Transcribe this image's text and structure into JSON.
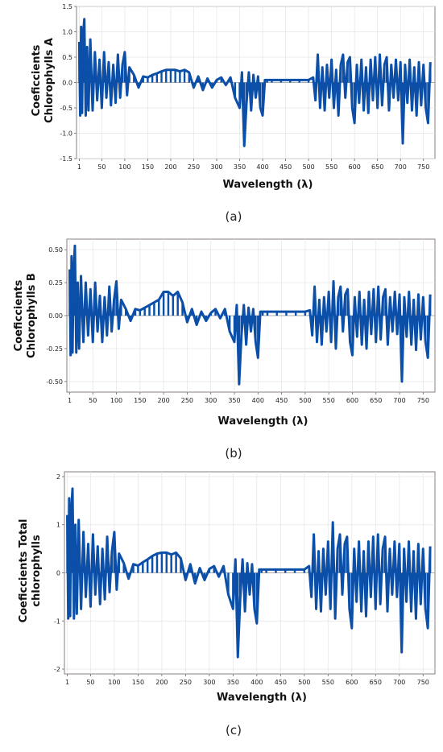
{
  "chart_data": [
    {
      "type": "bar",
      "panel_label": "(a)",
      "xlabel": "Wavelength (λ)",
      "ylabel_lines": [
        "Coeficcients",
        "Chlorophylls  A"
      ],
      "ylim": [
        -1.5,
        1.5
      ],
      "y_ticks": [
        -1.5,
        -1.0,
        -0.5,
        0.0,
        0.5,
        1.0,
        1.5
      ],
      "y_tick_labels": [
        "-1.5",
        "-1.0",
        "-0.5",
        "0.0",
        "0.5",
        "1.0",
        "1.5"
      ],
      "xlim": [
        -5,
        775
      ],
      "x_ticks": [
        1,
        50,
        100,
        150,
        200,
        250,
        300,
        350,
        400,
        450,
        500,
        550,
        600,
        650,
        700,
        750
      ],
      "x_tick_labels": [
        "1",
        "50",
        "100",
        "150",
        "200",
        "250",
        "300",
        "350",
        "400",
        "450",
        "500",
        "550",
        "600",
        "650",
        "700",
        "750"
      ],
      "grid": true,
      "color": "#0b4fa8",
      "series": [
        {
          "x": [
            1,
            3,
            5,
            7,
            9,
            12,
            15,
            18,
            21,
            25,
            30,
            35,
            40,
            45,
            50,
            55,
            60,
            65,
            70,
            75,
            80,
            85,
            90,
            95,
            100,
            105,
            110,
            120,
            130,
            140,
            150,
            160,
            170,
            180,
            190,
            200,
            210,
            220,
            230,
            240,
            250,
            260,
            270,
            280,
            290,
            300,
            310,
            320,
            330,
            340,
            350,
            355,
            360,
            365,
            370,
            375,
            380,
            385,
            390,
            395,
            400,
            405,
            410,
            420,
            440,
            460,
            480,
            500,
            510,
            515,
            520,
            525,
            530,
            535,
            540,
            545,
            550,
            555,
            560,
            565,
            570,
            575,
            580,
            585,
            590,
            595,
            600,
            605,
            610,
            615,
            620,
            625,
            630,
            635,
            640,
            645,
            650,
            655,
            660,
            665,
            670,
            675,
            680,
            685,
            690,
            695,
            700,
            705,
            710,
            715,
            720,
            725,
            730,
            735,
            740,
            745,
            750,
            755,
            760,
            765
          ],
          "values": [
            0.8,
            -0.65,
            1.1,
            -0.6,
            0.9,
            1.25,
            -0.65,
            0.7,
            -0.55,
            0.85,
            -0.55,
            0.6,
            -0.35,
            0.45,
            -0.5,
            0.6,
            -0.3,
            0.4,
            -0.45,
            0.35,
            -0.4,
            0.55,
            -0.3,
            0.35,
            0.6,
            -0.25,
            0.3,
            0.15,
            -0.1,
            0.12,
            0.1,
            0.15,
            0.18,
            0.22,
            0.25,
            0.25,
            0.25,
            0.22,
            0.25,
            0.2,
            -0.1,
            0.12,
            -0.15,
            0.08,
            -0.1,
            0.05,
            0.1,
            -0.05,
            0.1,
            -0.3,
            -0.5,
            0.2,
            -1.25,
            -0.4,
            0.2,
            -0.55,
            0.15,
            -0.3,
            0.12,
            -0.5,
            -0.65,
            0.05,
            0.05,
            0.05,
            0.05,
            0.05,
            0.05,
            0.05,
            0.1,
            -0.35,
            0.55,
            -0.5,
            0.3,
            -0.55,
            0.35,
            -0.3,
            0.45,
            -0.5,
            0.25,
            -0.65,
            0.35,
            0.55,
            -0.3,
            0.4,
            0.5,
            -0.5,
            -0.8,
            0.35,
            -0.4,
            0.45,
            -0.55,
            0.3,
            -0.6,
            0.45,
            -0.35,
            0.5,
            -0.5,
            0.55,
            -0.45,
            0.35,
            0.5,
            -0.55,
            0.35,
            -0.3,
            0.45,
            -0.35,
            0.4,
            -1.2,
            0.35,
            -0.4,
            0.45,
            -0.55,
            0.3,
            -0.65,
            0.4,
            -0.45,
            0.35,
            -0.5,
            -0.8,
            0.4
          ]
        }
      ]
    },
    {
      "type": "bar",
      "panel_label": "(b)",
      "xlabel": "Wavelength (λ)",
      "ylabel_lines": [
        "Coeficcients",
        "Chlorophylls  B"
      ],
      "ylim": [
        -0.58,
        0.58
      ],
      "y_ticks": [
        -0.5,
        -0.25,
        0.0,
        0.25,
        0.5
      ],
      "y_tick_labels": [
        "-0.50",
        "-0.25",
        "0.00",
        "0.25",
        "0.50"
      ],
      "xlim": [
        -5,
        775
      ],
      "x_ticks": [
        1,
        50,
        100,
        150,
        200,
        250,
        300,
        350,
        400,
        450,
        500,
        550,
        600,
        650,
        700,
        750
      ],
      "x_tick_labels": [
        "1",
        "50",
        "100",
        "150",
        "200",
        "250",
        "300",
        "350",
        "400",
        "450",
        "500",
        "550",
        "600",
        "650",
        "700",
        "750"
      ],
      "grid": true,
      "color": "#0b4fa8",
      "series": [
        {
          "x": [
            1,
            3,
            5,
            7,
            9,
            12,
            15,
            18,
            21,
            25,
            30,
            35,
            40,
            45,
            50,
            55,
            60,
            65,
            70,
            75,
            80,
            85,
            90,
            95,
            100,
            105,
            110,
            120,
            130,
            140,
            150,
            160,
            170,
            180,
            190,
            200,
            210,
            220,
            230,
            240,
            250,
            260,
            270,
            280,
            290,
            300,
            310,
            320,
            330,
            340,
            350,
            355,
            360,
            365,
            370,
            375,
            380,
            385,
            390,
            395,
            400,
            405,
            410,
            420,
            440,
            460,
            480,
            500,
            510,
            515,
            520,
            525,
            530,
            535,
            540,
            545,
            550,
            555,
            560,
            565,
            570,
            575,
            580,
            585,
            590,
            595,
            600,
            605,
            610,
            615,
            620,
            625,
            630,
            635,
            640,
            645,
            650,
            655,
            660,
            665,
            670,
            675,
            680,
            685,
            690,
            695,
            700,
            705,
            710,
            715,
            720,
            725,
            730,
            735,
            740,
            745,
            750,
            755,
            760,
            765
          ],
          "values": [
            0.35,
            -0.3,
            0.45,
            -0.28,
            0.3,
            0.53,
            -0.28,
            0.25,
            -0.25,
            0.3,
            -0.2,
            0.25,
            -0.15,
            0.2,
            -0.2,
            0.25,
            -0.12,
            0.15,
            -0.2,
            0.14,
            -0.15,
            0.22,
            -0.12,
            0.12,
            0.26,
            -0.1,
            0.12,
            0.05,
            -0.04,
            0.05,
            0.04,
            0.06,
            0.08,
            0.1,
            0.12,
            0.18,
            0.18,
            0.15,
            0.18,
            0.1,
            -0.05,
            0.05,
            -0.07,
            0.03,
            -0.04,
            0.02,
            0.05,
            -0.02,
            0.05,
            -0.12,
            -0.2,
            0.08,
            -0.52,
            -0.15,
            0.08,
            -0.22,
            0.06,
            -0.12,
            0.05,
            -0.2,
            -0.32,
            0.03,
            0.03,
            0.03,
            0.03,
            0.03,
            0.03,
            0.03,
            0.04,
            -0.15,
            0.22,
            -0.2,
            0.12,
            -0.22,
            0.14,
            -0.12,
            0.18,
            -0.2,
            0.26,
            -0.25,
            0.14,
            0.22,
            -0.12,
            0.16,
            0.2,
            -0.2,
            -0.3,
            0.14,
            -0.16,
            0.18,
            -0.22,
            0.12,
            -0.25,
            0.18,
            -0.14,
            0.2,
            -0.2,
            0.22,
            -0.18,
            0.14,
            0.2,
            -0.22,
            0.14,
            -0.12,
            0.18,
            -0.14,
            0.16,
            -0.5,
            0.14,
            -0.16,
            0.18,
            -0.22,
            0.12,
            -0.26,
            0.16,
            -0.18,
            0.14,
            -0.2,
            -0.32,
            0.16
          ]
        }
      ]
    },
    {
      "type": "bar",
      "panel_label": "(c)",
      "xlabel": "Wavelength (λ)",
      "ylabel_lines": [
        "Coeficcients Total",
        "chlorophylls"
      ],
      "ylim": [
        -2.1,
        2.1
      ],
      "y_ticks": [
        -2,
        -1,
        0,
        1,
        2
      ],
      "y_tick_labels": [
        "-2",
        "-1",
        "0",
        "1",
        "2"
      ],
      "xlim": [
        -5,
        775
      ],
      "x_ticks": [
        1,
        50,
        100,
        150,
        200,
        250,
        300,
        350,
        400,
        450,
        500,
        550,
        600,
        650,
        700,
        750
      ],
      "x_tick_labels": [
        "1",
        "50",
        "100",
        "150",
        "200",
        "250",
        "300",
        "350",
        "400",
        "450",
        "500",
        "550",
        "600",
        "650",
        "700",
        "750"
      ],
      "grid": true,
      "color": "#0b4fa8",
      "series": [
        {
          "x": [
            1,
            3,
            5,
            7,
            9,
            12,
            15,
            18,
            21,
            25,
            30,
            35,
            40,
            45,
            50,
            55,
            60,
            65,
            70,
            75,
            80,
            85,
            90,
            95,
            100,
            105,
            110,
            120,
            130,
            140,
            150,
            160,
            170,
            180,
            190,
            200,
            210,
            220,
            230,
            240,
            250,
            260,
            270,
            280,
            290,
            300,
            310,
            320,
            330,
            340,
            350,
            355,
            360,
            365,
            370,
            375,
            380,
            385,
            390,
            395,
            400,
            405,
            410,
            420,
            440,
            460,
            480,
            500,
            510,
            515,
            520,
            525,
            530,
            535,
            540,
            545,
            550,
            555,
            560,
            565,
            570,
            575,
            580,
            585,
            590,
            595,
            600,
            605,
            610,
            615,
            620,
            625,
            630,
            635,
            640,
            645,
            650,
            655,
            660,
            665,
            670,
            675,
            680,
            685,
            690,
            695,
            700,
            705,
            710,
            715,
            720,
            725,
            730,
            735,
            740,
            745,
            750,
            755,
            760,
            765
          ],
          "values": [
            1.2,
            -0.95,
            1.55,
            -0.9,
            1.2,
            1.75,
            -0.95,
            1.0,
            -0.85,
            1.1,
            -0.75,
            0.85,
            -0.5,
            0.6,
            -0.7,
            0.8,
            -0.45,
            0.55,
            -0.65,
            0.5,
            -0.55,
            0.75,
            -0.4,
            0.45,
            0.85,
            -0.35,
            0.4,
            0.2,
            -0.12,
            0.18,
            0.15,
            0.22,
            0.28,
            0.35,
            0.4,
            0.42,
            0.42,
            0.38,
            0.42,
            0.3,
            -0.15,
            0.18,
            -0.22,
            0.1,
            -0.15,
            0.08,
            0.14,
            -0.08,
            0.14,
            -0.45,
            -0.75,
            0.28,
            -1.75,
            -0.55,
            0.28,
            -0.8,
            0.2,
            -0.45,
            0.18,
            -0.75,
            -1.05,
            0.07,
            0.07,
            0.07,
            0.07,
            0.07,
            0.07,
            0.07,
            0.14,
            -0.5,
            0.8,
            -0.75,
            0.45,
            -0.8,
            0.5,
            -0.45,
            0.65,
            -0.75,
            1.05,
            -0.95,
            0.5,
            0.8,
            -0.45,
            0.6,
            0.75,
            -0.75,
            -1.15,
            0.5,
            -0.6,
            0.65,
            -0.8,
            0.45,
            -0.9,
            0.65,
            -0.5,
            0.75,
            -0.75,
            0.8,
            -0.65,
            0.5,
            0.75,
            -0.8,
            0.5,
            -0.45,
            0.65,
            -0.5,
            0.6,
            -1.65,
            0.5,
            -0.6,
            0.65,
            -0.8,
            0.45,
            -0.95,
            0.6,
            -0.65,
            0.5,
            -0.75,
            -1.15,
            0.55
          ]
        }
      ]
    }
  ]
}
